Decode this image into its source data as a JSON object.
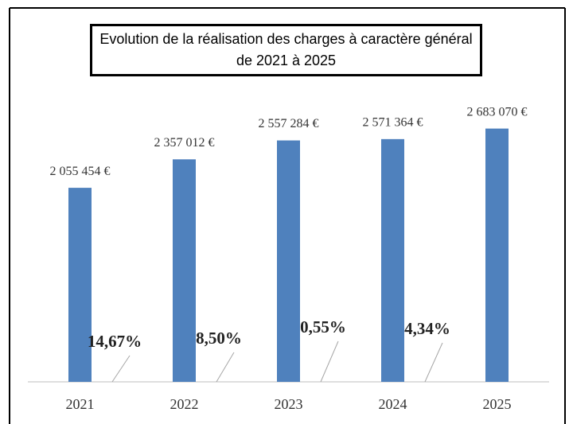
{
  "chart_data": {
    "type": "bar",
    "title": "Evolution de la réalisation des charges à caractère général de 2021 à 2025",
    "categories": [
      "2021",
      "2022",
      "2023",
      "2024",
      "2025"
    ],
    "values": [
      2055454,
      2357012,
      2557284,
      2571364,
      2683070
    ],
    "value_labels": [
      "2 055 454 €",
      "2 357 012 €",
      "2 557 284 €",
      "2 571 364 €",
      "2 683 070 €"
    ],
    "annotations": [
      "14,67%",
      "8,50%",
      "0,55%",
      "4,34%"
    ],
    "color": "#4f81bd",
    "ylim": [
      0,
      3000000
    ]
  }
}
